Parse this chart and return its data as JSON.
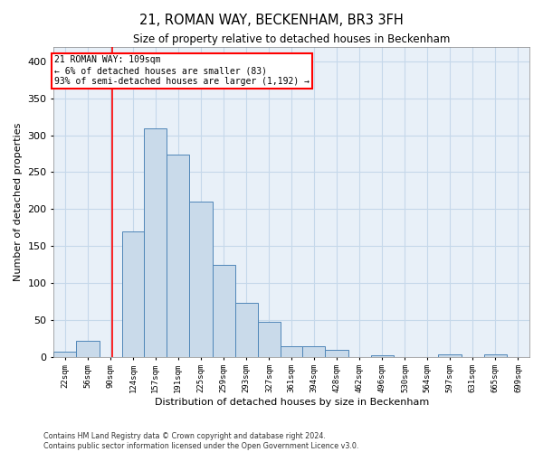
{
  "title": "21, ROMAN WAY, BECKENHAM, BR3 3FH",
  "subtitle": "Size of property relative to detached houses in Beckenham",
  "xlabel": "Distribution of detached houses by size in Beckenham",
  "ylabel": "Number of detached properties",
  "annotation_line1": "21 ROMAN WAY: 109sqm",
  "annotation_line2": "← 6% of detached houses are smaller (83)",
  "annotation_line3": "93% of semi-detached houses are larger (1,192) →",
  "property_size_sqm": 109,
  "bin_labels": [
    "22sqm",
    "56sqm",
    "90sqm",
    "124sqm",
    "157sqm",
    "191sqm",
    "225sqm",
    "259sqm",
    "293sqm",
    "327sqm",
    "361sqm",
    "394sqm",
    "428sqm",
    "462sqm",
    "496sqm",
    "530sqm",
    "564sqm",
    "597sqm",
    "631sqm",
    "665sqm",
    "699sqm"
  ],
  "bin_lefts": [
    22,
    56,
    90,
    124,
    157,
    191,
    225,
    259,
    293,
    327,
    361,
    394,
    428,
    462,
    496,
    530,
    564,
    597,
    631,
    665,
    699
  ],
  "bar_values": [
    7,
    21,
    0,
    170,
    309,
    274,
    210,
    125,
    73,
    47,
    14,
    14,
    9,
    0,
    2,
    0,
    0,
    3,
    0,
    3,
    0
  ],
  "bar_color": "#c9daea",
  "bar_edge_color": "#4f86b8",
  "vline_x": 109,
  "vline_color": "red",
  "grid_color": "#c5d8ea",
  "background_color": "#e8f0f8",
  "ylim": [
    0,
    420
  ],
  "yticks": [
    0,
    50,
    100,
    150,
    200,
    250,
    300,
    350,
    400
  ],
  "footer_line1": "Contains HM Land Registry data © Crown copyright and database right 2024.",
  "footer_line2": "Contains public sector information licensed under the Open Government Licence v3.0."
}
